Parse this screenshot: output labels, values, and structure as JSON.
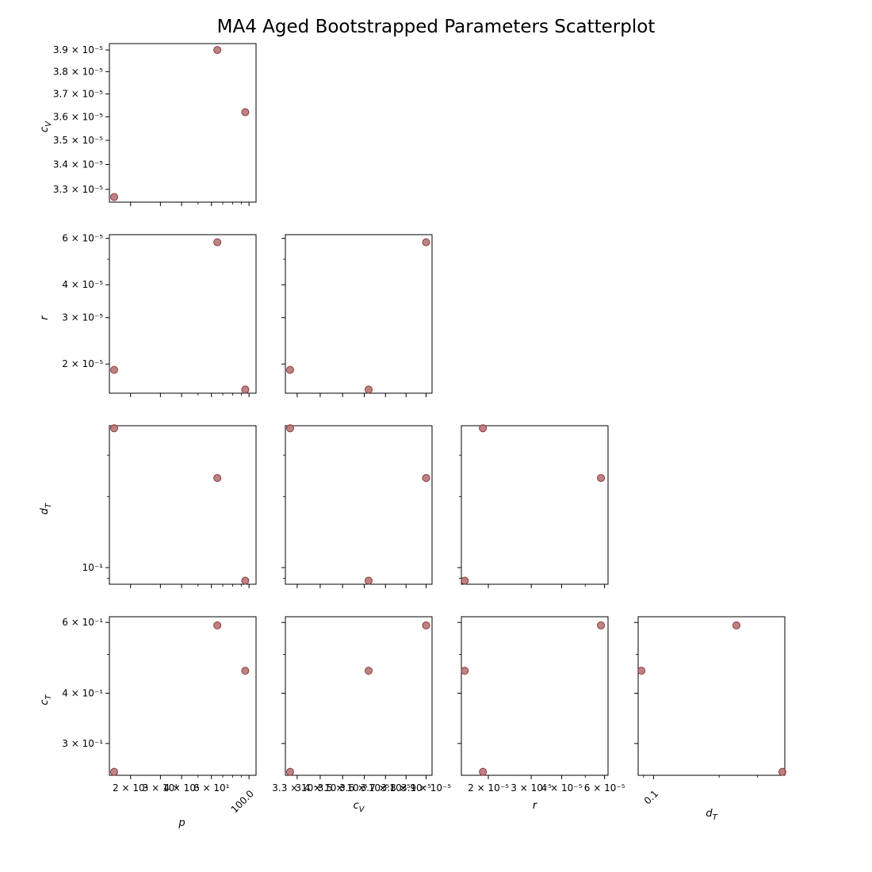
{
  "title": "MA4 Aged Bootstrapped Parameters Scatterplot",
  "colors": {
    "marker_fill": "#b87474",
    "marker_edge": "#8b3a3a",
    "axes": "#000000"
  },
  "chart_data": {
    "type": "scatter",
    "kind": "pairplot-lower-triangle",
    "scale": "log",
    "variables": [
      {
        "key": "p",
        "label_base": "p",
        "label_sub": "",
        "range": [
          15,
          110
        ]
      },
      {
        "key": "cV",
        "label_base": "c",
        "label_sub": "V",
        "range": [
          3.25e-05,
          3.93e-05
        ]
      },
      {
        "key": "r",
        "label_base": "r",
        "label_sub": "",
        "range": [
          1.55e-05,
          6.2e-05
        ]
      },
      {
        "key": "dT",
        "label_base": "d",
        "label_sub": "T",
        "range": [
          0.085,
          0.4
        ]
      },
      {
        "key": "cT",
        "label_base": "c",
        "label_sub": "T",
        "range": [
          0.25,
          0.62
        ]
      }
    ],
    "samples": [
      {
        "p": 16,
        "cV": 3.27e-05,
        "r": 1.9e-05,
        "dT": 0.39,
        "cT": 0.255
      },
      {
        "p": 65,
        "cV": 3.9e-05,
        "r": 5.8e-05,
        "dT": 0.24,
        "cT": 0.59
      },
      {
        "p": 95,
        "cV": 3.62e-05,
        "r": 1.6e-05,
        "dT": 0.088,
        "cT": 0.455
      }
    ],
    "ticks": {
      "p": [
        {
          "v": 20,
          "label": "2 × 10¹"
        },
        {
          "v": 30,
          "label": "3 × 10¹"
        },
        {
          "v": 40,
          "label": "4 × 10¹"
        },
        {
          "v": 60,
          "label": "6 × 10¹"
        },
        {
          "v": 100,
          "label": "100.0",
          "rotate": true
        }
      ],
      "cV": [
        {
          "v": 3.3e-05,
          "label": "3.3 × 10⁻⁵"
        },
        {
          "v": 3.4e-05,
          "label": "3.4 × 10⁻⁵"
        },
        {
          "v": 3.5e-05,
          "label": "3.5 × 10⁻⁵"
        },
        {
          "v": 3.6e-05,
          "label": "3.6 × 10⁻⁵"
        },
        {
          "v": 3.7e-05,
          "label": "3.7 × 10⁻⁵"
        },
        {
          "v": 3.8e-05,
          "label": "3.8 × 10⁻⁵"
        },
        {
          "v": 3.9e-05,
          "label": "3.9 × 10⁻⁵"
        }
      ],
      "r": [
        {
          "v": 2e-05,
          "label": "2 × 10⁻⁵"
        },
        {
          "v": 3e-05,
          "label": "3 × 10⁻⁵"
        },
        {
          "v": 4e-05,
          "label": "4 × 10⁻⁵"
        },
        {
          "v": 6e-05,
          "label": "6 × 10⁻⁵"
        }
      ],
      "dT": [
        {
          "v": 0.1,
          "label": "10⁻¹",
          "x_label": "0.1",
          "rotate": true
        }
      ],
      "cT": [
        {
          "v": 0.3,
          "label": "3 × 10⁻¹"
        },
        {
          "v": 0.4,
          "label": "4 × 10⁻¹"
        },
        {
          "v": 0.6,
          "label": "6 × 10⁻¹"
        }
      ]
    },
    "minor_ticks": {
      "p": [
        50,
        70,
        80,
        90
      ],
      "cV": [],
      "r": [
        5e-05
      ],
      "dT": [
        0.09,
        0.2,
        0.3
      ],
      "cT": [
        0.5
      ]
    }
  }
}
